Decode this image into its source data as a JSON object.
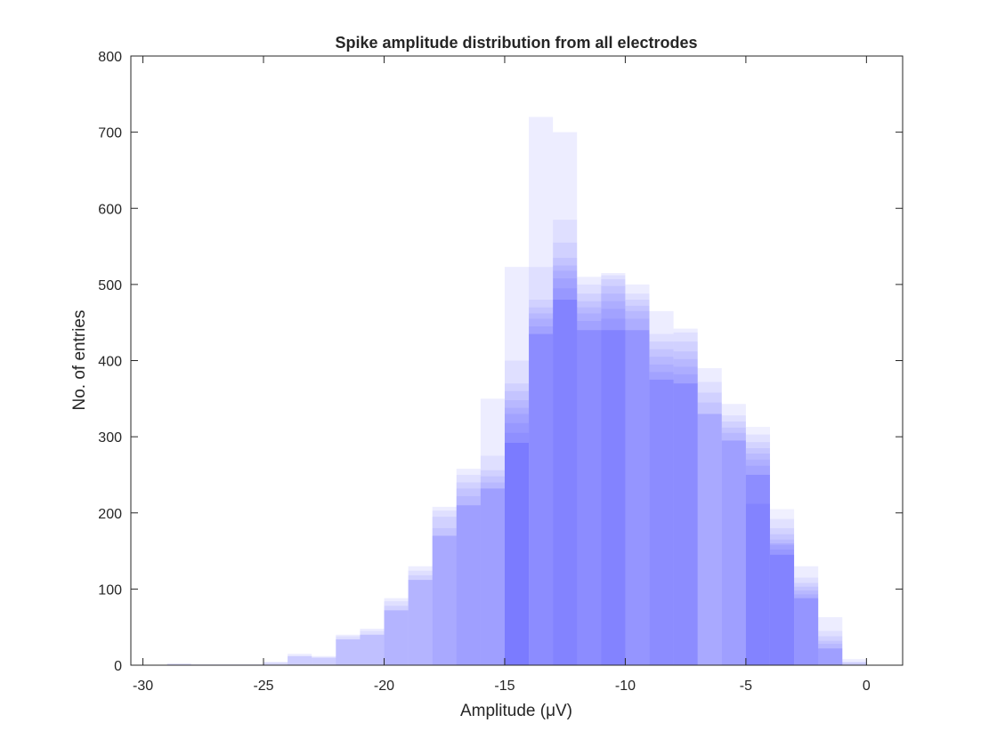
{
  "chart_data": {
    "type": "bar",
    "title": "Spike amplitude distribution from all electrodes",
    "xlabel": "Amplitude (μV)",
    "ylabel": "No. of entries",
    "xlim": [
      -30.5,
      1.5
    ],
    "ylim": [
      0,
      800
    ],
    "xticks": [
      "-30",
      "-25",
      "-20",
      "-15",
      "-10",
      "-5",
      "0"
    ],
    "xtick_values": [
      -30,
      -25,
      -20,
      -15,
      -10,
      -5,
      0
    ],
    "yticks": [
      "0",
      "100",
      "200",
      "300",
      "400",
      "500",
      "600",
      "700",
      "800"
    ],
    "ytick_values": [
      0,
      100,
      200,
      300,
      400,
      500,
      600,
      700,
      800
    ],
    "grid": false,
    "bar_color": "#0000ff",
    "bin_width": 1,
    "bins": [
      {
        "x0": -29,
        "max": 2,
        "bands": []
      },
      {
        "x0": -28,
        "max": 1,
        "bands": []
      },
      {
        "x0": -27,
        "max": 1,
        "bands": []
      },
      {
        "x0": -26,
        "max": 1,
        "bands": []
      },
      {
        "x0": -25,
        "max": 4,
        "bands": []
      },
      {
        "x0": -24,
        "max": 15,
        "bands": [
          12
        ]
      },
      {
        "x0": -23,
        "max": 12,
        "bands": [
          10
        ]
      },
      {
        "x0": -22,
        "max": 40,
        "bands": [
          34,
          38
        ]
      },
      {
        "x0": -21,
        "max": 48,
        "bands": [
          40,
          45
        ]
      },
      {
        "x0": -20,
        "max": 88,
        "bands": [
          72,
          78,
          84
        ]
      },
      {
        "x0": -19,
        "max": 130,
        "bands": [
          112,
          118,
          124
        ]
      },
      {
        "x0": -18,
        "max": 208,
        "bands": [
          170,
          180,
          195,
          203
        ]
      },
      {
        "x0": -17,
        "max": 258,
        "bands": [
          210,
          222,
          232,
          240,
          250
        ]
      },
      {
        "x0": -16,
        "max": 350,
        "bands": [
          232,
          240,
          248,
          256,
          275
        ]
      },
      {
        "x0": -15,
        "max": 523,
        "bands": [
          292,
          305,
          318,
          330,
          338,
          348,
          360,
          370,
          400
        ]
      },
      {
        "x0": -14,
        "max": 720,
        "bands": [
          435,
          445,
          455,
          462,
          470,
          480,
          523
        ]
      },
      {
        "x0": -13,
        "max": 700,
        "bands": [
          480,
          495,
          508,
          518,
          525,
          535,
          555,
          585
        ]
      },
      {
        "x0": -12,
        "max": 510,
        "bands": [
          440,
          452,
          462,
          470,
          478,
          488,
          500
        ]
      },
      {
        "x0": -11,
        "max": 515,
        "bands": [
          440,
          455,
          468,
          478,
          488,
          498,
          507,
          512
        ]
      },
      {
        "x0": -10,
        "max": 500,
        "bands": [
          440,
          455,
          465,
          472,
          480,
          488
        ]
      },
      {
        "x0": -9,
        "max": 465,
        "bands": [
          375,
          385,
          395,
          405,
          415,
          425,
          435
        ]
      },
      {
        "x0": -8,
        "max": 442,
        "bands": [
          370,
          382,
          392,
          402,
          412,
          425,
          437
        ]
      },
      {
        "x0": -7,
        "max": 390,
        "bands": [
          330,
          345,
          358,
          372
        ]
      },
      {
        "x0": -6,
        "max": 343,
        "bands": [
          295,
          305,
          312,
          320,
          328
        ]
      },
      {
        "x0": -5,
        "max": 212,
        "bands": [
          250,
          262,
          270,
          278,
          285,
          293,
          303,
          313
        ]
      },
      {
        "x0": -4,
        "max": 160,
        "bands": [
          145,
          152,
          158,
          165,
          172,
          180,
          192,
          205
        ]
      },
      {
        "x0": -3,
        "max": 130,
        "bands": [
          88,
          93,
          98,
          103,
          108,
          115
        ]
      },
      {
        "x0": -2,
        "max": 63,
        "bands": [
          22,
          28,
          32,
          38,
          45
        ]
      },
      {
        "x0": -1,
        "max": 8,
        "bands": [
          4
        ]
      }
    ]
  }
}
